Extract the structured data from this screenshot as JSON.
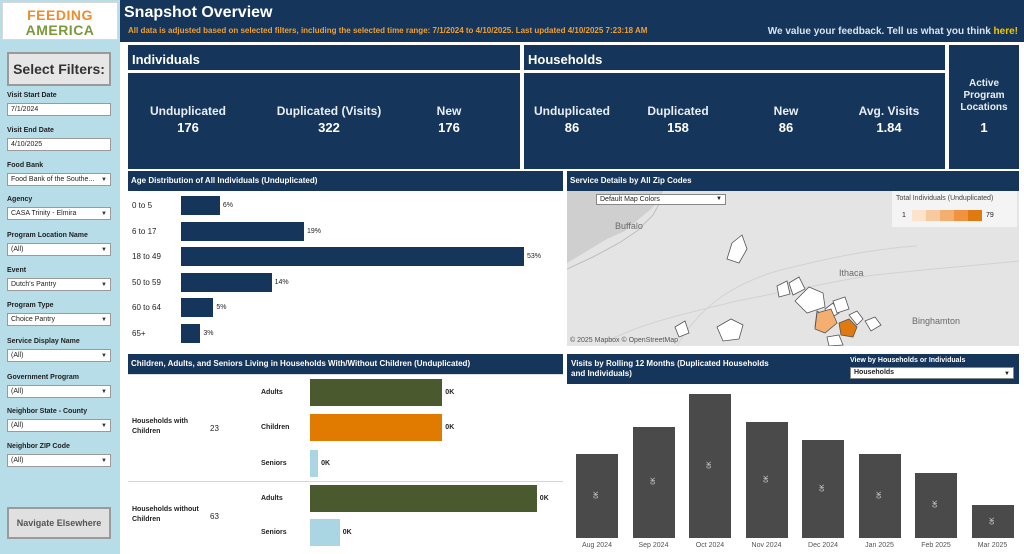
{
  "logo": {
    "line1": "FEEDING",
    "line2": "AMERICA"
  },
  "header": {
    "title": "Snapshot Overview",
    "subtitle": "All data is adjusted based on selected filters, including the selected time range:  7/1/2024 to 4/10/2025.  Last updated 4/10/2025 7:23:18 AM",
    "feedback_text": "We value your feedback. Tell us what you think ",
    "feedback_link": "here!"
  },
  "sidebar": {
    "select_filters_label": "Select Filters:",
    "filters": [
      {
        "label": "Visit Start Date",
        "value": "7/1/2024",
        "kind": "input"
      },
      {
        "label": "Visit End Date",
        "value": "4/10/2025",
        "kind": "input"
      },
      {
        "label": "Food Bank",
        "value": "Food Bank of the Southe...",
        "kind": "select"
      },
      {
        "label": "Agency",
        "value": "CASA Trinity - Elmira",
        "kind": "select"
      },
      {
        "label": "Program Location Name",
        "value": "(All)",
        "kind": "select"
      },
      {
        "label": "Event",
        "value": "Dutch's Pantry",
        "kind": "select"
      },
      {
        "label": "Program Type",
        "value": "Choice Pantry",
        "kind": "select"
      },
      {
        "label": "Service Display Name",
        "value": "(All)",
        "kind": "select"
      },
      {
        "label": "Government Program",
        "value": "(All)",
        "kind": "select"
      },
      {
        "label": "Neighbor State - County",
        "value": "(All)",
        "kind": "select"
      },
      {
        "label": "Neighbor ZIP Code",
        "value": "(All)",
        "kind": "select"
      }
    ],
    "navigate_label": "Navigate Elsewhere"
  },
  "individuals": {
    "title": "Individuals",
    "metrics": [
      {
        "label": "Unduplicated",
        "value": "176"
      },
      {
        "label": "Duplicated (Visits)",
        "value": "322"
      },
      {
        "label": "New",
        "value": "176"
      }
    ]
  },
  "households": {
    "title": "Households",
    "metrics": [
      {
        "label": "Unduplicated",
        "value": "86"
      },
      {
        "label": "Duplicated",
        "value": "158"
      },
      {
        "label": "New",
        "value": "86"
      },
      {
        "label": "Avg. Visits",
        "value": "1.84"
      }
    ]
  },
  "active_locations": {
    "label": "Active Program Locations",
    "value": "1"
  },
  "age_chart": {
    "title": "Age Distribution of All Individuals (Unduplicated)",
    "bar_color": "#15355a"
  },
  "map": {
    "title": "Service Details by All Zip Codes",
    "dropdown": "Default Map Colors",
    "legend_title": "Total Individuals (Unduplicated)",
    "legend_min": "1",
    "legend_max": "79",
    "legend_colors": [
      "#fbe3cc",
      "#f8c99e",
      "#f4ae70",
      "#f09240",
      "#e07a10"
    ],
    "cities": [
      "Buffalo",
      "Ithaca",
      "Binghamton"
    ],
    "attribution": "© 2025 Mapbox  © OpenStreetMap"
  },
  "hh_chart": {
    "title": "Children, Adults, and Seniors Living in Households With/Without Children (Unduplicated)",
    "groups": [
      {
        "name": "Households with Children",
        "count": "23"
      },
      {
        "name": "Households without Children",
        "count": "63"
      }
    ],
    "bars": [
      {
        "category": "Adults",
        "label": "0K",
        "value": 0.49,
        "color": "#4a5a2e"
      },
      {
        "category": "Children",
        "label": "0K",
        "value": 0.49,
        "color": "#e07b00"
      },
      {
        "category": "Seniors",
        "label": "0K",
        "value": 0.03,
        "color": "#aad6e4"
      },
      {
        "category": "Adults",
        "label": "0K",
        "value": 0.84,
        "color": "#4a5a2e"
      },
      {
        "category": "Seniors",
        "label": "0K",
        "value": 0.11,
        "color": "#aad6e4"
      }
    ]
  },
  "visits": {
    "title": "Visits by Rolling 12 Months (Duplicated Households and Individuals)",
    "view_label": "View by Households or Individuals",
    "view_value": "Households"
  },
  "chart_data": [
    {
      "type": "bar",
      "orientation": "horizontal",
      "title": "Age Distribution of All Individuals (Unduplicated)",
      "categories": [
        "0 to 5",
        "6 to 17",
        "18 to 49",
        "50 to 59",
        "60 to 64",
        "65+"
      ],
      "values": [
        6,
        19,
        53,
        14,
        5,
        3
      ],
      "value_labels": [
        "6%",
        "19%",
        "53%",
        "14%",
        "5%",
        "3%"
      ],
      "unit": "%"
    },
    {
      "type": "bar",
      "title": "Visits by Rolling 12 Months (Duplicated Households and Individuals)",
      "categories": [
        "Aug 2024",
        "Sep 2024",
        "Oct 2024",
        "Nov 2024",
        "Dec 2024",
        "Jan 2025",
        "Feb 2025",
        "Mar 2025"
      ],
      "values": [
        0.18,
        0.24,
        0.31,
        0.25,
        0.21,
        0.18,
        0.14,
        0.07
      ],
      "value_labels": [
        "0K",
        "0K",
        "0K",
        "0K",
        "0K",
        "0K",
        "0K",
        "0K"
      ],
      "color": "#4a4a4a"
    }
  ]
}
